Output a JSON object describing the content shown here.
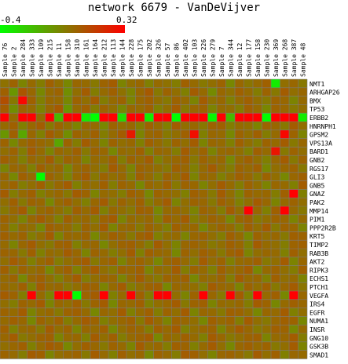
{
  "chart_data": {
    "type": "heatmap",
    "title": "network 6679 - VanDeVijver",
    "color_scale": {
      "min": -0.4,
      "max": 0.32,
      "min_label": "-0.4",
      "max_label": "0.32",
      "low_color": "#00ff00",
      "high_color": "#ff0000"
    },
    "columns": [
      "Sample 76",
      "Sample 2",
      "Sample 284",
      "Sample 333",
      "Sample 109",
      "Sample 215",
      "Sample 11",
      "Sample 158",
      "Sample 310",
      "Sample 161",
      "Sample 164",
      "Sample 212",
      "Sample 113",
      "Sample 144",
      "Sample 228",
      "Sample 175",
      "Sample 202",
      "Sample 326",
      "Sample 57",
      "Sample 86",
      "Sample 402",
      "Sample 103",
      "Sample 226",
      "Sample 279",
      "Sample 7",
      "Sample 344",
      "Sample 12",
      "Sample 177",
      "Sample 158",
      "Sample 230",
      "Sample 369",
      "Sample 268",
      "Sample 387",
      "Sample 48"
    ],
    "rows": [
      "NMT1",
      "ARHGAP26",
      "BMX",
      "TP53",
      "ERBB2",
      "HNRNPH1",
      "GPSM2",
      "VPS13A",
      "BARD1",
      "GNB2",
      "RGS17",
      "GLI3",
      "GNB5",
      "GNAZ",
      "PAK2",
      "MMP14",
      "PIM1",
      "PPP2R2B",
      "KRT5",
      "TIMP2",
      "RAB3B",
      "AKT2",
      "RIPK3",
      "ECHS1",
      "PTCH1",
      "VEGFA",
      "IRS4",
      "EGFR",
      "NUMA1",
      "INSR",
      "GNG10",
      "GSK3B",
      "SMAD1"
    ],
    "values": [
      [
        0.0,
        0.04,
        -0.05,
        0.02,
        -0.03,
        0.05,
        0.01,
        -0.06,
        0.03,
        0.02,
        -0.02,
        0.04,
        0.06,
        -0.05,
        0.01,
        0.03,
        -0.04,
        0.02,
        0.0,
        -0.03,
        0.05,
        0.02,
        -0.02,
        0.01,
        0.04,
        -0.06,
        0.03,
        -0.01,
        0.02,
        0.05,
        -0.35,
        0.01,
        0.03,
        -0.02
      ],
      [
        0.05,
        -0.1,
        0.08,
        0.03,
        -0.06,
        0.02,
        0.04,
        -0.08,
        0.01,
        0.06,
        -0.03,
        0.02,
        0.05,
        0.0,
        -0.05,
        0.03,
        0.07,
        -0.02,
        0.04,
        0.01,
        -0.04,
        0.06,
        0.02,
        -0.07,
        0.03,
        0.0,
        0.05,
        0.02,
        -0.03,
        0.04,
        -0.02,
        0.06,
        0.01,
        0.03
      ],
      [
        0.1,
        -0.02,
        0.3,
        0.05,
        -0.04,
        0.03,
        0.02,
        -0.06,
        0.04,
        0.01,
        0.06,
        -0.03,
        0.02,
        0.04,
        -0.05,
        0.03,
        0.05,
        0.01,
        -0.02,
        0.04,
        0.02,
        -0.05,
        0.06,
        0.0,
        0.03,
        -0.04,
        0.02,
        0.05,
        0.01,
        -0.02,
        0.04,
        0.03,
        -0.05,
        0.02
      ],
      [
        0.06,
        -0.08,
        0.04,
        0.02,
        -0.05,
        0.03,
        0.07,
        -0.1,
        0.02,
        0.05,
        -0.03,
        0.04,
        0.01,
        -0.06,
        0.03,
        0.02,
        0.05,
        -0.04,
        0.01,
        0.06,
        -0.02,
        0.03,
        0.04,
        -0.05,
        0.02,
        0.01,
        -0.03,
        0.05,
        0.02,
        -0.06,
        0.04,
        0.03,
        -0.02,
        0.01
      ],
      [
        0.32,
        0.02,
        0.32,
        0.32,
        0.02,
        0.32,
        -0.2,
        0.32,
        0.32,
        -0.35,
        -0.4,
        0.32,
        0.32,
        -0.3,
        0.32,
        0.32,
        -0.35,
        0.32,
        0.32,
        -0.4,
        0.32,
        0.32,
        0.32,
        -0.38,
        0.32,
        -0.2,
        0.32,
        0.32,
        0.32,
        -0.4,
        0.32,
        0.32,
        0.32,
        -0.35
      ],
      [
        0.02,
        0.05,
        -0.04,
        0.03,
        0.06,
        -0.02,
        0.04,
        0.01,
        -0.05,
        0.03,
        0.02,
        -0.06,
        0.04,
        0.01,
        0.03,
        -0.03,
        0.05,
        0.02,
        -0.04,
        0.06,
        0.01,
        0.03,
        -0.02,
        0.04,
        0.05,
        -0.03,
        0.02,
        0.01,
        -0.05,
        0.04,
        0.03,
        -0.02,
        0.06,
        0.01
      ],
      [
        -0.1,
        0.05,
        -0.15,
        0.03,
        -0.04,
        0.06,
        0.02,
        -0.08,
        0.04,
        0.01,
        0.05,
        -0.03,
        0.02,
        0.06,
        0.25,
        -0.05,
        0.03,
        0.04,
        -0.02,
        0.01,
        0.05,
        0.28,
        -0.04,
        0.03,
        0.02,
        -0.06,
        0.04,
        0.01,
        0.05,
        -0.03,
        0.02,
        0.3,
        0.04,
        -0.05
      ],
      [
        0.04,
        -0.06,
        0.02,
        0.05,
        0.03,
        0.01,
        -0.15,
        0.04,
        -0.03,
        0.06,
        0.02,
        -0.05,
        0.04,
        0.01,
        0.03,
        -0.04,
        0.05,
        0.02,
        -0.02,
        0.04,
        0.01,
        0.06,
        -0.05,
        0.03,
        0.02,
        -0.04,
        0.05,
        0.01,
        -0.03,
        0.04,
        0.02,
        0.06,
        -0.02,
        0.03
      ],
      [
        0.01,
        0.04,
        -0.03,
        0.06,
        0.02,
        -0.05,
        0.03,
        0.01,
        0.05,
        -0.02,
        0.04,
        0.03,
        -0.06,
        0.02,
        0.01,
        0.05,
        -0.04,
        0.03,
        0.02,
        -0.03,
        0.06,
        0.01,
        0.04,
        -0.05,
        0.02,
        0.03,
        0.01,
        -0.04,
        0.05,
        0.02,
        0.26,
        -0.02,
        0.04,
        0.01
      ],
      [
        0.05,
        0.02,
        -0.04,
        0.03,
        0.01,
        0.06,
        -0.02,
        0.04,
        0.03,
        -0.05,
        0.02,
        0.01,
        0.05,
        -0.03,
        0.04,
        0.02,
        0.06,
        -0.04,
        0.01,
        0.03,
        0.05,
        -0.02,
        0.04,
        0.01,
        0.03,
        -0.06,
        0.02,
        0.05,
        0.01,
        -0.04,
        0.03,
        0.06,
        -0.02,
        0.04
      ],
      [
        -0.05,
        0.03,
        0.02,
        -0.04,
        0.05,
        0.01,
        0.03,
        -0.06,
        0.02,
        0.04,
        0.01,
        -0.03,
        0.06,
        0.02,
        -0.05,
        0.04,
        0.03,
        0.01,
        -0.02,
        0.05,
        0.03,
        -0.04,
        0.02,
        0.06,
        0.01,
        -0.03,
        0.04,
        0.02,
        0.05,
        -0.06,
        0.01,
        0.03,
        0.04,
        -0.02
      ],
      [
        0.03,
        -0.06,
        0.05,
        0.02,
        -0.4,
        0.04,
        0.01,
        -0.05,
        0.03,
        0.06,
        -0.02,
        0.04,
        0.01,
        0.03,
        -0.04,
        0.05,
        0.02,
        -0.03,
        0.04,
        0.01,
        0.06,
        -0.05,
        0.03,
        0.02,
        -0.04,
        0.01,
        0.05,
        0.03,
        -0.02,
        0.04,
        0.01,
        -0.06,
        0.03,
        0.05
      ],
      [
        0.02,
        0.04,
        -0.03,
        0.01,
        0.05,
        -0.02,
        0.03,
        0.06,
        -0.04,
        0.02,
        0.01,
        0.05,
        -0.03,
        0.04,
        0.02,
        -0.06,
        0.03,
        0.01,
        0.05,
        -0.02,
        0.04,
        0.03,
        -0.05,
        0.01,
        0.06,
        0.02,
        -0.03,
        0.04,
        0.01,
        -0.05,
        0.03,
        0.02,
        -0.04,
        0.06
      ],
      [
        0.06,
        -0.03,
        0.02,
        0.05,
        -0.04,
        0.01,
        0.03,
        -0.02,
        0.06,
        0.04,
        -0.05,
        0.02,
        0.01,
        -0.03,
        0.05,
        0.03,
        -0.06,
        0.04,
        0.02,
        0.01,
        -0.04,
        0.05,
        0.03,
        -0.02,
        0.06,
        0.01,
        -0.05,
        0.04,
        0.02,
        0.03,
        -0.03,
        0.05,
        0.32,
        -0.04
      ],
      [
        0.01,
        0.05,
        -0.02,
        0.04,
        0.03,
        -0.06,
        0.02,
        0.05,
        0.01,
        -0.04,
        0.03,
        0.06,
        -0.02,
        0.04,
        0.01,
        0.05,
        -0.03,
        0.02,
        0.06,
        -0.05,
        0.01,
        0.04,
        0.03,
        -0.02,
        0.05,
        0.02,
        -0.04,
        0.01,
        0.06,
        0.03,
        -0.05,
        0.02,
        0.04,
        0.01
      ],
      [
        -0.02,
        0.03,
        0.06,
        -0.05,
        0.02,
        0.04,
        0.01,
        -0.03,
        0.05,
        0.02,
        0.06,
        -0.04,
        0.03,
        0.01,
        -0.02,
        0.05,
        0.04,
        -0.06,
        0.02,
        0.03,
        0.01,
        -0.05,
        0.04,
        0.02,
        -0.03,
        0.06,
        0.01,
        0.32,
        0.03,
        -0.04,
        0.05,
        0.32,
        0.02,
        -0.02
      ],
      [
        0.04,
        0.01,
        -0.05,
        0.03,
        0.06,
        0.02,
        -0.04,
        0.05,
        0.01,
        0.03,
        -0.02,
        0.04,
        0.06,
        -0.05,
        0.02,
        0.01,
        0.03,
        -0.04,
        0.05,
        0.02,
        0.06,
        -0.03,
        0.01,
        0.04,
        0.02,
        -0.06,
        0.03,
        0.05,
        -0.02,
        0.01,
        0.04,
        0.03,
        -0.05,
        0.02
      ],
      [
        0.03,
        -0.04,
        0.02,
        0.01,
        -0.06,
        0.05,
        0.03,
        0.02,
        -0.03,
        0.04,
        0.01,
        0.06,
        -0.05,
        0.02,
        0.03,
        -0.02,
        0.04,
        0.01,
        -0.04,
        0.05,
        0.02,
        0.03,
        -0.06,
        0.01,
        0.04,
        0.02,
        -0.03,
        0.05,
        0.01,
        0.06,
        -0.02,
        0.04,
        0.03,
        -0.05
      ],
      [
        0.05,
        0.02,
        0.04,
        -0.03,
        0.01,
        0.06,
        -0.05,
        0.03,
        0.02,
        0.04,
        -0.06,
        0.01,
        0.05,
        0.03,
        -0.02,
        0.04,
        0.06,
        -0.04,
        0.01,
        0.02,
        -0.05,
        0.03,
        0.04,
        0.01,
        -0.03,
        0.05,
        0.02,
        -0.06,
        0.04,
        0.01,
        0.03,
        -0.02,
        0.05,
        0.04
      ],
      [
        0.02,
        -0.05,
        0.03,
        0.06,
        0.01,
        -0.02,
        0.04,
        0.05,
        -0.04,
        0.02,
        0.03,
        -0.06,
        0.01,
        0.04,
        0.05,
        0.02,
        -0.03,
        0.06,
        0.01,
        -0.05,
        0.03,
        0.04,
        0.02,
        -0.02,
        0.01,
        0.05,
        0.03,
        -0.04,
        0.06,
        0.02,
        0.01,
        -0.03,
        0.04,
        0.05
      ],
      [
        0.04,
        0.03,
        -0.02,
        0.05,
        -0.04,
        0.02,
        0.01,
        0.06,
        0.03,
        -0.05,
        0.04,
        0.02,
        -0.03,
        0.01,
        0.06,
        -0.04,
        0.05,
        0.03,
        0.02,
        -0.06,
        0.04,
        0.01,
        0.05,
        0.03,
        -0.02,
        0.04,
        0.06,
        -0.05,
        0.01,
        0.03,
        0.02,
        -0.04,
        0.05,
        0.01
      ],
      [
        0.01,
        0.06,
        0.03,
        -0.04,
        0.02,
        0.05,
        -0.03,
        0.01,
        0.04,
        0.06,
        -0.02,
        0.03,
        0.05,
        -0.05,
        0.02,
        0.04,
        0.01,
        -0.06,
        0.03,
        0.05,
        0.02,
        -0.03,
        0.06,
        0.01,
        0.04,
        -0.04,
        0.02,
        0.03,
        0.05,
        -0.02,
        0.01,
        0.06,
        -0.05,
        0.03
      ],
      [
        0.05,
        -0.02,
        0.04,
        0.01,
        0.03,
        -0.06,
        0.02,
        0.05,
        -0.04,
        0.03,
        0.06,
        0.01,
        -0.02,
        0.04,
        0.03,
        0.05,
        -0.05,
        0.02,
        0.01,
        0.06,
        -0.03,
        0.04,
        0.02,
        -0.04,
        0.05,
        0.01,
        0.03,
        0.06,
        -0.06,
        0.02,
        0.04,
        0.01,
        -0.03,
        0.05
      ],
      [
        0.02,
        0.04,
        -0.06,
        0.03,
        0.05,
        0.01,
        -0.04,
        0.02,
        0.06,
        -0.03,
        0.01,
        0.04,
        0.03,
        -0.05,
        0.02,
        0.06,
        0.01,
        -0.02,
        0.04,
        0.03,
        0.05,
        -0.06,
        0.02,
        0.01,
        0.04,
        -0.03,
        0.06,
        0.02,
        0.03,
        -0.04,
        0.05,
        0.01,
        0.02,
        -0.05
      ],
      [
        0.03,
        0.01,
        0.05,
        -0.04,
        0.06,
        0.02,
        0.03,
        -0.02,
        0.01,
        0.05,
        0.04,
        -0.05,
        0.02,
        0.06,
        -0.03,
        0.01,
        0.04,
        0.05,
        -0.06,
        0.03,
        0.02,
        0.01,
        -0.04,
        0.06,
        0.03,
        0.02,
        -0.05,
        0.04,
        0.01,
        0.05,
        -0.02,
        0.03,
        0.06,
        -0.01
      ],
      [
        0.06,
        0.04,
        -0.03,
        0.32,
        0.02,
        -0.05,
        0.32,
        0.32,
        -0.4,
        0.04,
        0.06,
        0.32,
        -0.04,
        0.02,
        0.32,
        0.05,
        -0.03,
        0.32,
        0.32,
        0.01,
        -0.05,
        0.04,
        0.32,
        0.03,
        -0.02,
        0.32,
        0.06,
        -0.04,
        0.32,
        0.02,
        0.05,
        -0.06,
        0.32,
        0.03
      ],
      [
        0.01,
        -0.03,
        0.04,
        0.02,
        0.06,
        -0.05,
        0.03,
        0.01,
        0.05,
        -0.02,
        0.04,
        0.06,
        -0.06,
        0.03,
        0.02,
        0.05,
        -0.04,
        0.01,
        0.03,
        0.06,
        -0.02,
        0.04,
        0.05,
        -0.05,
        0.02,
        0.01,
        0.03,
        -0.03,
        0.06,
        0.04,
        -0.06,
        0.02,
        0.05,
        0.03
      ],
      [
        0.04,
        0.02,
        0.06,
        -0.05,
        0.01,
        0.03,
        -0.02,
        0.04,
        0.05,
        0.02,
        -0.06,
        0.03,
        0.01,
        0.06,
        -0.04,
        0.02,
        0.05,
        -0.03,
        0.04,
        0.01,
        0.06,
        -0.05,
        0.03,
        0.02,
        -0.02,
        0.05,
        0.04,
        0.01,
        -0.06,
        0.03,
        0.02,
        0.06,
        -0.04,
        0.01
      ],
      [
        0.02,
        0.05,
        0.03,
        -0.06,
        0.04,
        0.01,
        0.05,
        -0.03,
        0.02,
        0.06,
        0.04,
        -0.04,
        0.01,
        0.03,
        0.05,
        -0.02,
        0.06,
        0.02,
        -0.05,
        0.04,
        0.03,
        0.01,
        -0.06,
        0.05,
        0.02,
        0.04,
        -0.03,
        0.06,
        0.01,
        -0.02,
        0.03,
        0.05,
        0.04,
        -0.06
      ],
      [
        0.05,
        -0.04,
        0.02,
        0.03,
        -0.02,
        0.06,
        0.01,
        0.04,
        -0.05,
        0.03,
        0.02,
        0.05,
        -0.06,
        0.01,
        0.04,
        0.03,
        -0.03,
        0.05,
        0.02,
        0.06,
        -0.04,
        0.01,
        0.03,
        0.04,
        -0.05,
        0.02,
        0.06,
        0.03,
        -0.02,
        0.01,
        0.05,
        0.04,
        -0.06,
        0.02
      ],
      [
        0.03,
        0.06,
        -0.02,
        0.01,
        0.04,
        0.05,
        -0.05,
        0.02,
        0.03,
        -0.04,
        0.06,
        0.01,
        0.05,
        -0.03,
        0.02,
        0.04,
        0.06,
        -0.06,
        0.03,
        0.01,
        0.05,
        0.02,
        -0.04,
        0.06,
        0.03,
        -0.02,
        0.01,
        0.04,
        0.05,
        -0.05,
        0.02,
        0.03,
        0.06,
        -0.03
      ],
      [
        0.01,
        0.03,
        0.05,
        -0.04,
        0.02,
        0.06,
        0.04,
        -0.06,
        0.01,
        0.05,
        0.03,
        -0.02,
        0.04,
        0.02,
        -0.05,
        0.06,
        0.01,
        0.03,
        -0.03,
        0.05,
        0.04,
        -0.04,
        0.02,
        0.06,
        0.01,
        -0.06,
        0.03,
        0.05,
        0.02,
        0.04,
        -0.02,
        0.01,
        0.06,
        -0.05
      ],
      [
        0.04,
        0.02,
        -0.03,
        0.06,
        0.05,
        -0.05,
        0.01,
        0.03,
        0.04,
        -0.02,
        0.06,
        0.02,
        -0.04,
        0.05,
        0.01,
        0.03,
        -0.06,
        0.04,
        0.02,
        -0.03,
        0.06,
        0.05,
        0.01,
        -0.05,
        0.03,
        0.04,
        0.02,
        -0.02,
        0.06,
        0.01,
        0.05,
        -0.04,
        0.03,
        0.02
      ]
    ]
  }
}
